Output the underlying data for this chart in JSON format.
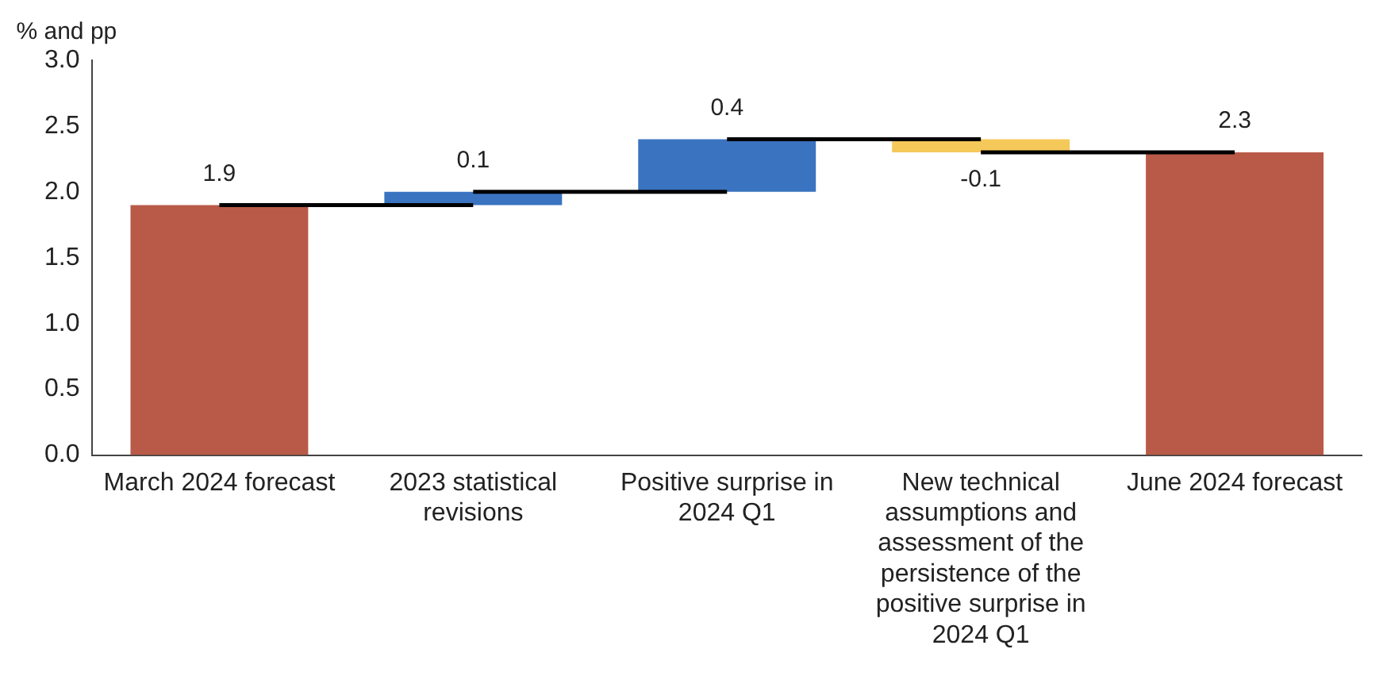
{
  "chart_data": {
    "type": "bar",
    "ylabel": "% and pp",
    "categories": [
      "March 2024 forecast",
      "2023 statistical revisions",
      "Positive surprise in 2024 Q1",
      "New technical assumptions and assessment of the persistence of the positive surprise in 2024 Q1",
      "June 2024 forecast"
    ],
    "values": [
      1.9,
      0.1,
      0.4,
      -0.1,
      2.3
    ],
    "base": [
      0,
      1.9,
      2.0,
      2.4,
      0
    ],
    "colors": [
      "#b95a48",
      "#3a74c0",
      "#3a74c0",
      "#f5c85a",
      "#b95a48"
    ],
    "ylim": [
      0,
      3
    ],
    "yticks": [
      {
        "value": 0,
        "label": "0.0"
      },
      {
        "value": 0.5,
        "label": "0.5"
      },
      {
        "value": 1,
        "label": "1.0"
      },
      {
        "value": 1.5,
        "label": "1.5"
      },
      {
        "value": 2,
        "label": "2.0"
      },
      {
        "value": 2.5,
        "label": "2.5"
      },
      {
        "value": 3,
        "label": "3.0"
      }
    ],
    "data_labels": true,
    "grid": false,
    "legend": false
  }
}
